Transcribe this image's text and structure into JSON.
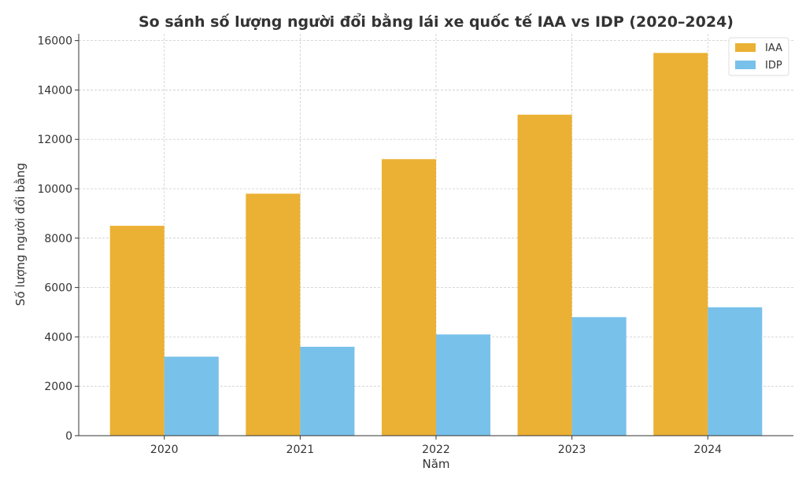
{
  "chart_data": {
    "type": "bar",
    "title": "So sánh số lượng người đổi bằng lái xe quốc tế IAA vs IDP (2020–2024)",
    "xlabel": "Năm",
    "ylabel": "Số lượng người đổi bằng",
    "categories": [
      "2020",
      "2021",
      "2022",
      "2023",
      "2024"
    ],
    "series": [
      {
        "name": "IAA",
        "color": "#EBB134",
        "values": [
          8500,
          9800,
          11200,
          13000,
          15500
        ]
      },
      {
        "name": "IDP",
        "color": "#78C1EA",
        "values": [
          3200,
          3600,
          4100,
          4800,
          5200
        ]
      }
    ],
    "yticks": [
      "0",
      "2000",
      "4000",
      "6000",
      "8000",
      "10000",
      "12000",
      "14000",
      "16000"
    ],
    "ylim": [
      0,
      16275
    ],
    "grid": true,
    "legend": "top-right"
  }
}
